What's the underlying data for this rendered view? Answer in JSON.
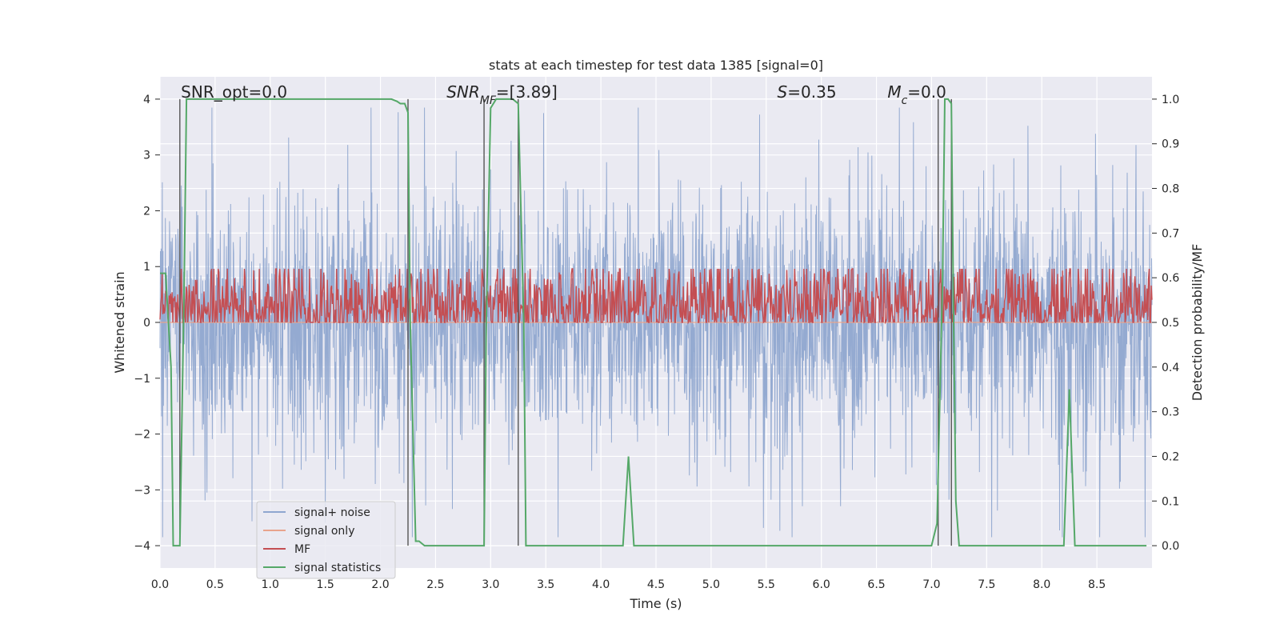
{
  "chart_data": {
    "type": "line",
    "title": "stats at each timestep for test data 1385 [signal=0]",
    "xlabel": "Time (s)",
    "ylabel": "Whitened strain",
    "ylabel_right": "Detection probability/MF",
    "xlim": [
      0,
      9.0
    ],
    "ylim": [
      -4.4,
      4.4
    ],
    "ylim_right": [
      -0.05,
      1.05
    ],
    "x_ticks": [
      "0.0",
      "0.5",
      "1.0",
      "1.5",
      "2.0",
      "2.5",
      "3.0",
      "3.5",
      "4.0",
      "4.5",
      "5.0",
      "5.5",
      "6.0",
      "6.5",
      "7.0",
      "7.5",
      "8.0",
      "8.5"
    ],
    "y_ticks": [
      "4",
      "3",
      "2",
      "1",
      "0",
      "−1",
      "−2",
      "−3",
      "−4"
    ],
    "y_right_ticks": [
      "1.0",
      "0.9",
      "0.8",
      "0.7",
      "0.6",
      "0.5",
      "0.4",
      "0.3",
      "0.2",
      "0.1",
      "0.0"
    ],
    "grid": true,
    "legend_position": "lower-left",
    "annotations": [
      {
        "id": "snr-opt",
        "x": 0.19,
        "parts": [
          {
            "text": "SNR_opt=0.0",
            "italic": false
          }
        ]
      },
      {
        "id": "snr-mf",
        "x": 2.6,
        "parts": [
          {
            "text": "SNR",
            "italic": true
          },
          {
            "text": "MF",
            "italic": true,
            "sub": true
          },
          {
            "text": "=[3.89]",
            "italic": false
          }
        ]
      },
      {
        "id": "s",
        "x": 5.6,
        "parts": [
          {
            "text": "S",
            "italic": true
          },
          {
            "text": "=0.35",
            "italic": false
          }
        ]
      },
      {
        "id": "mc",
        "x": 6.6,
        "parts": [
          {
            "text": "M",
            "italic": true
          },
          {
            "text": "c",
            "italic": true,
            "sub": true
          },
          {
            "text": "=0.0",
            "italic": false
          }
        ]
      }
    ],
    "vertical_lines_x": [
      0.18,
      2.25,
      2.94,
      3.25,
      7.06,
      7.18
    ],
    "series": [
      {
        "name": "signal+ noise",
        "color": "#8fa6cf",
        "type": "noise",
        "amplitude": 2.6,
        "axis": "left"
      },
      {
        "name": "signal only",
        "color": "#e8a48d",
        "type": "flat",
        "value": 0,
        "axis": "left"
      },
      {
        "name": "MF",
        "color": "#c44e52",
        "type": "noise",
        "mean": 0.54,
        "amplitude": 0.06,
        "axis": "right"
      },
      {
        "name": "signal statistics",
        "color": "#55a868",
        "axis": "right",
        "x": [
          0.0,
          0.05,
          0.1,
          0.12,
          0.18,
          0.22,
          0.24,
          0.26,
          0.3,
          1.9,
          2.05,
          2.1,
          2.15,
          2.18,
          2.22,
          2.25,
          2.27,
          2.32,
          2.35,
          2.4,
          2.94,
          2.96,
          3.0,
          3.05,
          3.1,
          3.2,
          3.25,
          3.3,
          3.32,
          4.2,
          4.25,
          4.3,
          7.0,
          7.05,
          7.1,
          7.12,
          7.15,
          7.18,
          7.2,
          7.22,
          7.25,
          8.2,
          8.25,
          8.3,
          8.95
        ],
        "y": [
          0.61,
          0.61,
          0.4,
          0.0,
          0.0,
          0.6,
          1.0,
          1.0,
          1.0,
          1.0,
          1.0,
          1.0,
          0.995,
          0.99,
          0.99,
          0.97,
          0.5,
          0.01,
          0.01,
          0.0,
          0.0,
          0.5,
          0.98,
          1.0,
          1.0,
          1.0,
          0.99,
          0.5,
          0.0,
          0.0,
          0.2,
          0.0,
          0.0,
          0.05,
          0.6,
          1.0,
          1.0,
          0.99,
          0.5,
          0.1,
          0.0,
          0.0,
          0.35,
          0.0,
          0.0
        ]
      }
    ]
  }
}
